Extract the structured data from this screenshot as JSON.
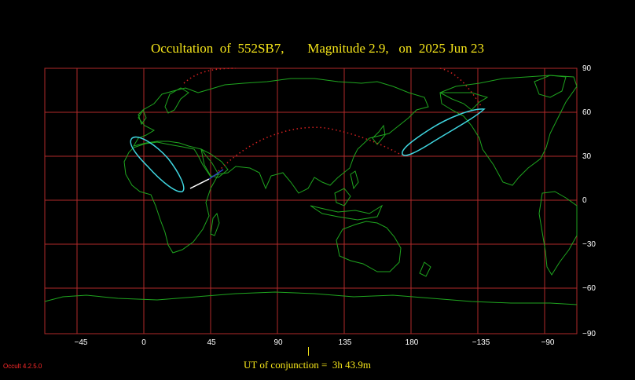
{
  "title": "Occultation  of  552SB7,       Magnitude 2.9,   on  2025 Jun 23",
  "x_ticks": [
    "−45",
    "0",
    "45",
    "90",
    "135",
    "180",
    "−135",
    "−90"
  ],
  "y_ticks": [
    "90",
    "60",
    "30",
    "0",
    "−30",
    "−60",
    "−90"
  ],
  "ut_conjunction": "UT of conjunction =  3h 43.9m",
  "version": "Occult 4.2.5.0",
  "colors": {
    "background": "#000000",
    "grid": "#b02a2a",
    "coastline": "#1fa51f",
    "path_ellipse": "#3fd6e0",
    "path_dotted": "#d42020",
    "central_segment": "#ffffff",
    "title": "#f5e51a"
  }
}
